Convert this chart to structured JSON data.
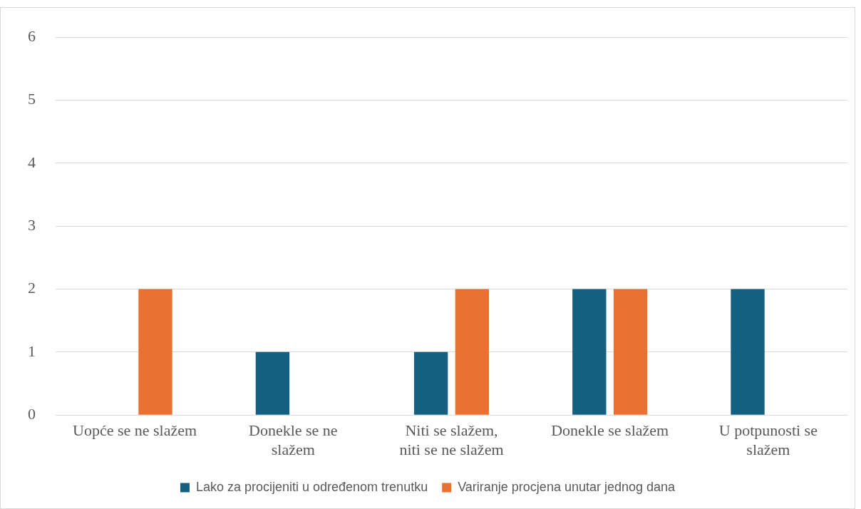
{
  "chart_data": {
    "type": "bar",
    "categories": [
      "Uopće se ne slažem",
      "Donekle se ne slažem",
      "Niti se slažem, niti se ne slažem",
      "Donekle se slažem",
      "U potpunosti se slažem"
    ],
    "series": [
      {
        "name": "Lako za procijeniti u određenom trenutku",
        "color": "#156082",
        "values": [
          0,
          1,
          1,
          2,
          2
        ]
      },
      {
        "name": "Variranje procjena unutar jednog dana",
        "color": "#e97132",
        "values": [
          2,
          0,
          2,
          2,
          0
        ]
      }
    ],
    "ylim": [
      0,
      6
    ],
    "yticks": [
      0,
      1,
      2,
      3,
      4,
      5,
      6
    ],
    "grid": "y",
    "legend": "bottom"
  }
}
